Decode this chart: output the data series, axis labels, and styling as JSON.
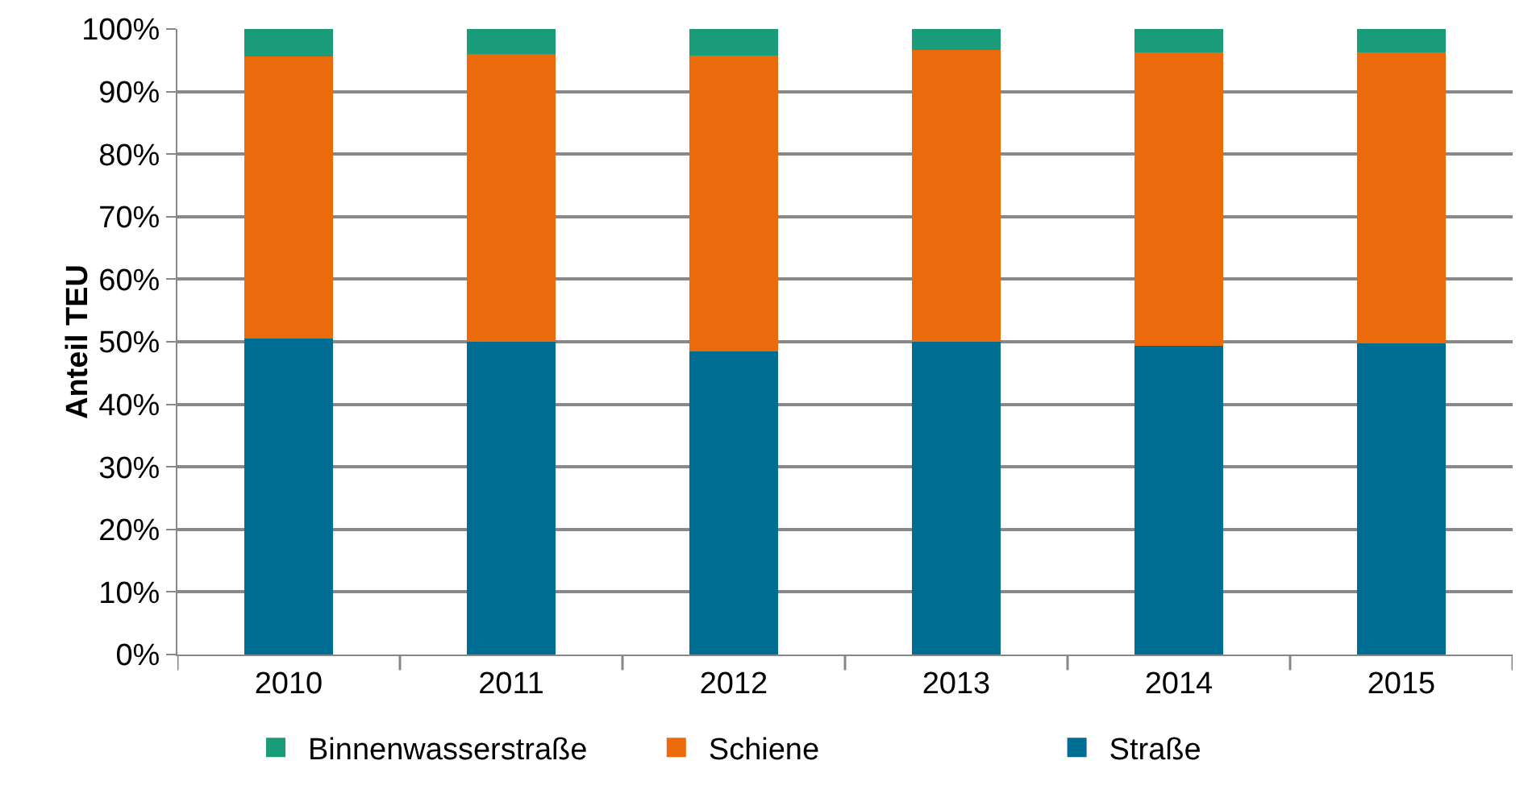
{
  "chart_data": {
    "type": "bar",
    "stacked": true,
    "ylabel": "Anteil TEU",
    "categories": [
      "2010",
      "2011",
      "2012",
      "2013",
      "2014",
      "2015"
    ],
    "series": [
      {
        "name": "Straße",
        "color": "#006e92",
        "values": [
          50.5,
          50.0,
          48.4,
          50.0,
          49.3,
          49.7
        ]
      },
      {
        "name": "Schiene",
        "color": "#ea6a0c",
        "values": [
          45.1,
          46.0,
          47.3,
          46.6,
          46.9,
          46.5
        ]
      },
      {
        "name": "Binnenwasserstraße",
        "color": "#1a9c7b",
        "values": [
          4.4,
          4.0,
          4.3,
          3.4,
          3.8,
          3.8
        ]
      }
    ],
    "ylim": [
      0,
      100
    ],
    "yticks": [
      {
        "value": 0,
        "label": "0%"
      },
      {
        "value": 10,
        "label": "10%"
      },
      {
        "value": 20,
        "label": "20%"
      },
      {
        "value": 30,
        "label": "30%"
      },
      {
        "value": 40,
        "label": "40%"
      },
      {
        "value": 50,
        "label": "50%"
      },
      {
        "value": 60,
        "label": "60%"
      },
      {
        "value": 70,
        "label": "70%"
      },
      {
        "value": 80,
        "label": "80%"
      },
      {
        "value": 90,
        "label": "90%"
      },
      {
        "value": 100,
        "label": "100%"
      }
    ],
    "grid": "y",
    "legend": "bottom"
  }
}
